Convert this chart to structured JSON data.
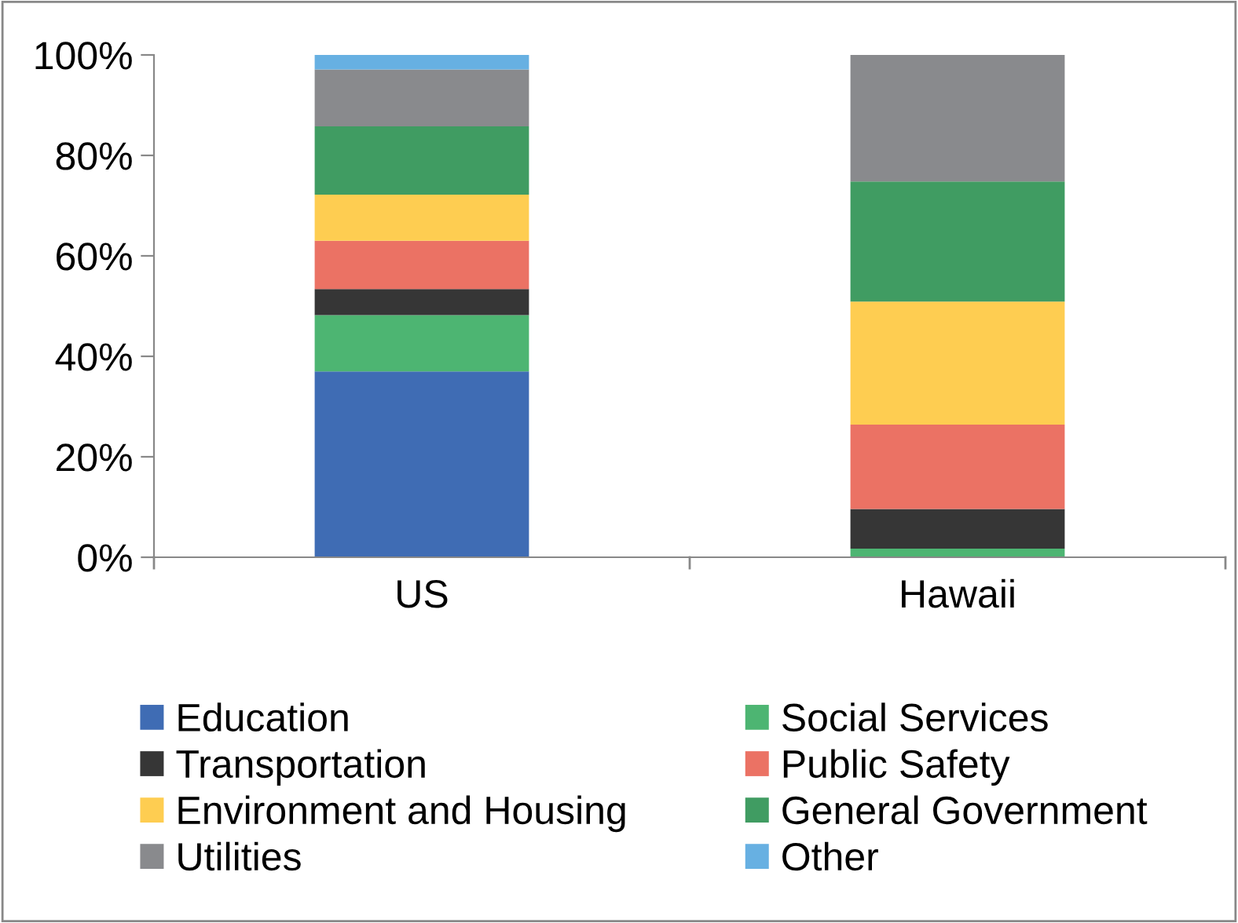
{
  "chart_data": {
    "type": "bar",
    "stacked": true,
    "categories": [
      "US",
      "Hawaii"
    ],
    "ylim": [
      0,
      100
    ],
    "yticks": [
      {
        "value": 0,
        "label": "0%"
      },
      {
        "value": 20,
        "label": "20%"
      },
      {
        "value": 40,
        "label": "40%"
      },
      {
        "value": 60,
        "label": "60%"
      },
      {
        "value": 80,
        "label": "80%"
      },
      {
        "value": 100,
        "label": "100%"
      }
    ],
    "grid": false,
    "legend": "bottom",
    "series": [
      {
        "name": "Education",
        "color": "#3f6cb4",
        "values": [
          37.0,
          0
        ]
      },
      {
        "name": "Social Services",
        "color": "#4db572",
        "values": [
          11.2,
          1.7
        ]
      },
      {
        "name": "Transportation",
        "color": "#363636",
        "values": [
          5.2,
          7.9
        ]
      },
      {
        "name": "Public Safety",
        "color": "#eb7264",
        "values": [
          9.6,
          16.8
        ]
      },
      {
        "name": "Environment and Housing",
        "color": "#fecd51",
        "values": [
          9.2,
          24.5
        ]
      },
      {
        "name": "General Government",
        "color": "#409c62",
        "values": [
          13.6,
          23.9
        ]
      },
      {
        "name": "Utilities",
        "color": "#898a8d",
        "values": [
          11.3,
          25.2
        ]
      },
      {
        "name": "Other",
        "color": "#67b0e2",
        "values": [
          2.9,
          0
        ]
      }
    ]
  }
}
